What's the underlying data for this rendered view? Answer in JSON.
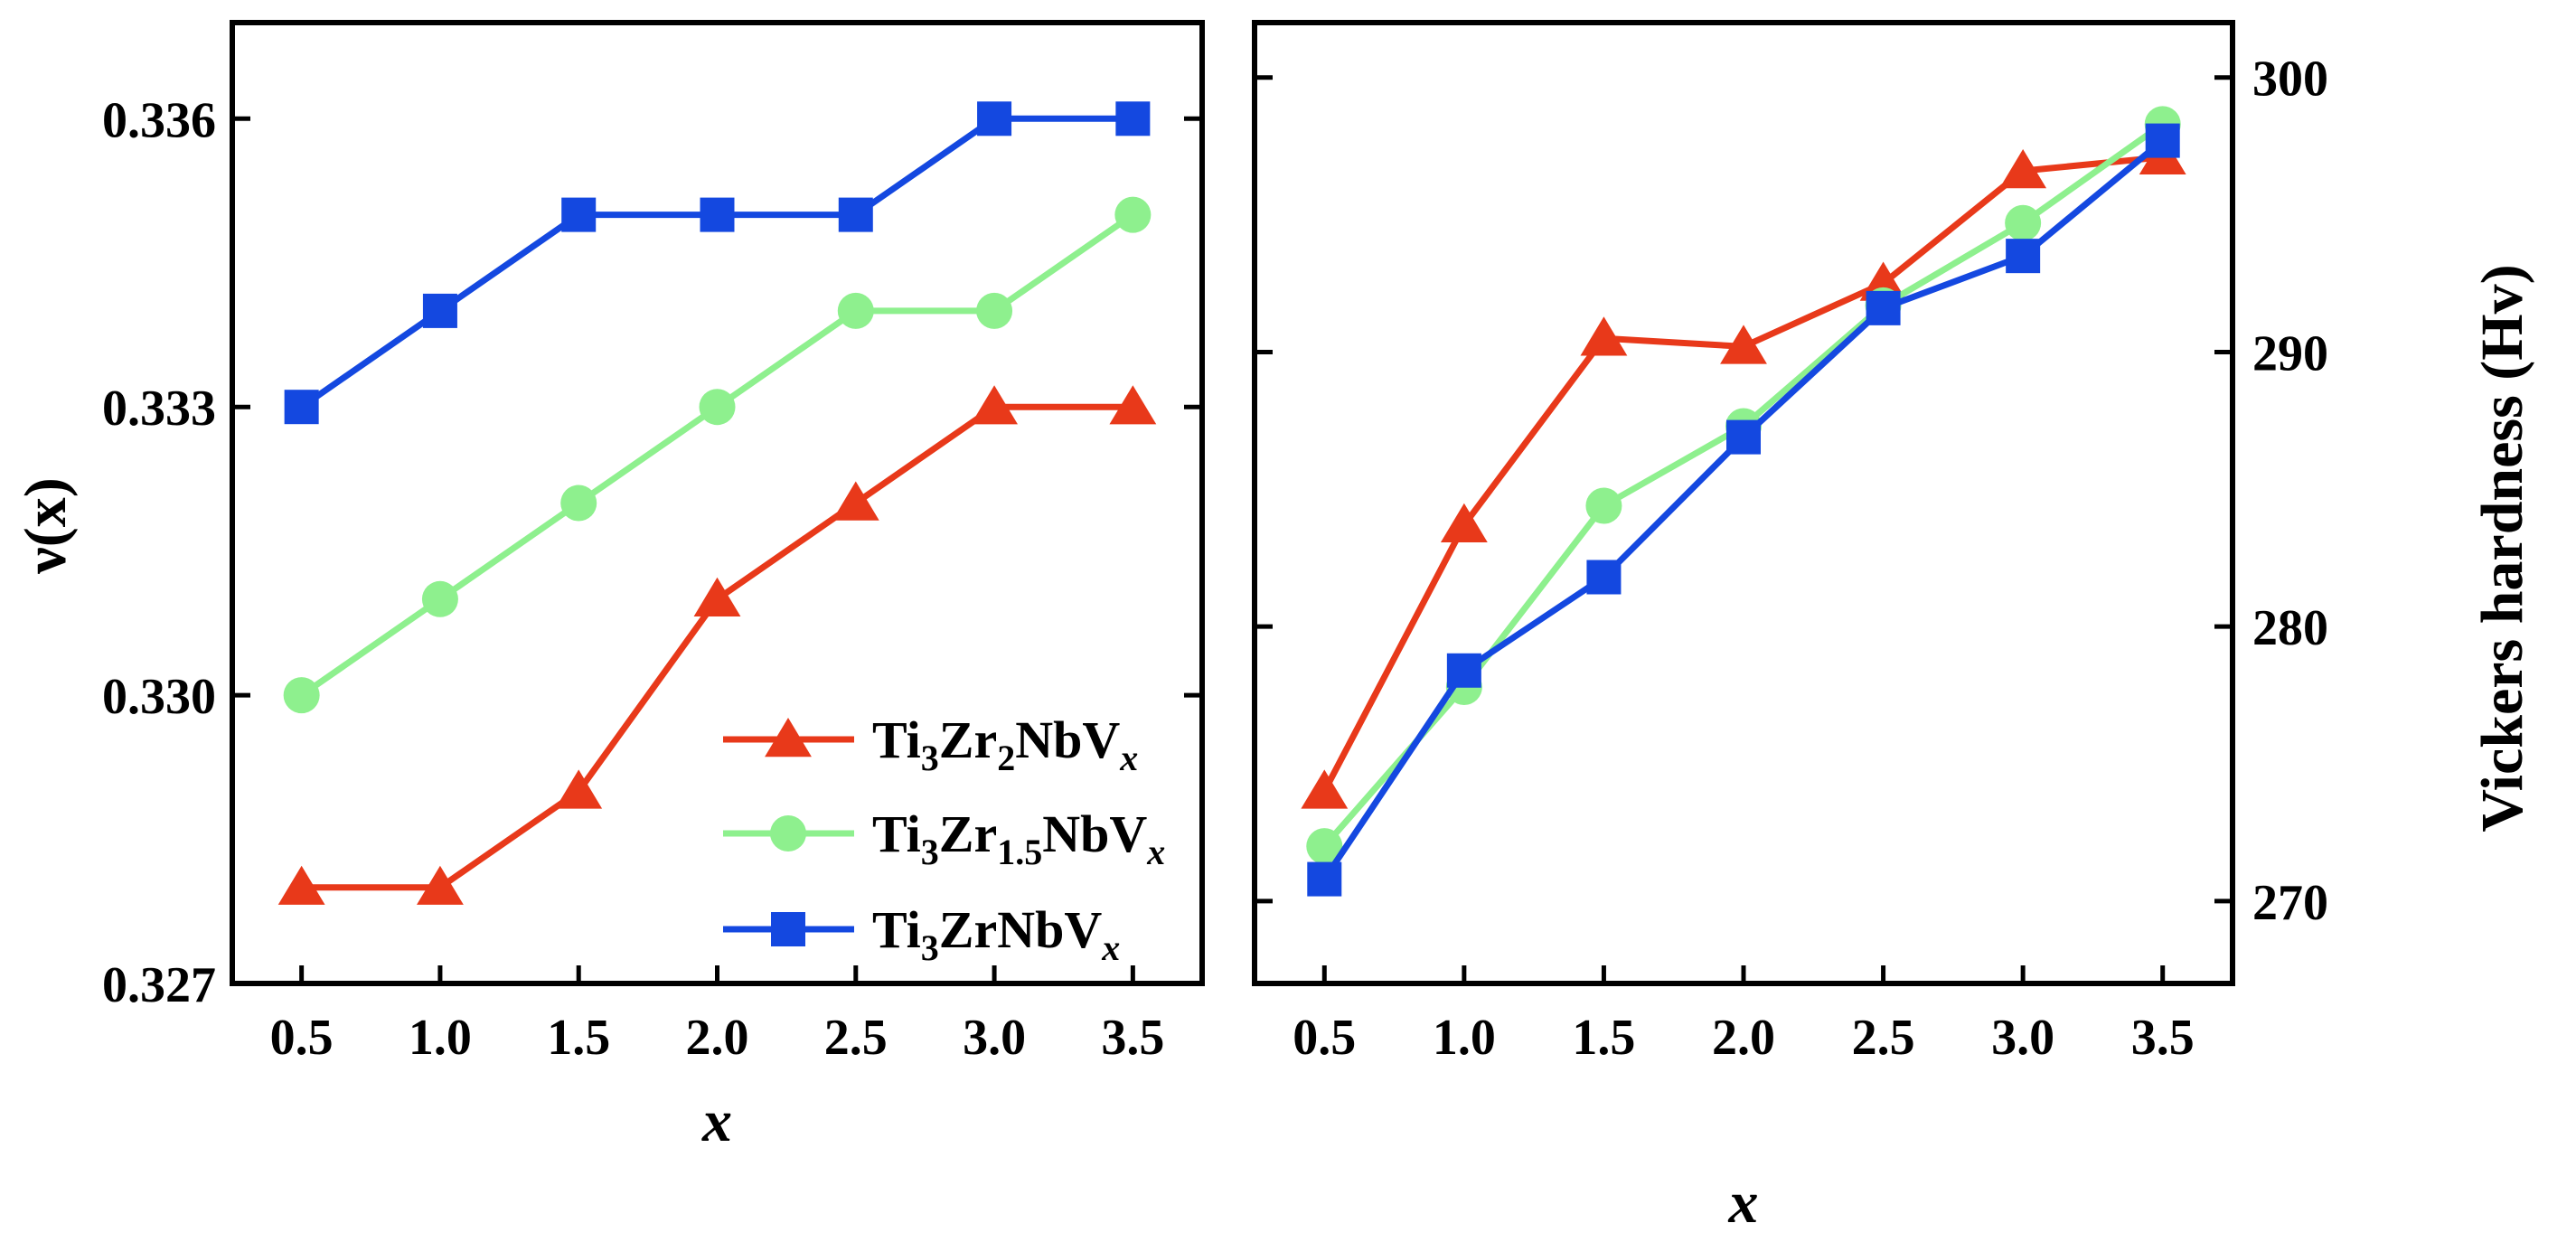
{
  "chart_data": [
    {
      "type": "line",
      "panel": "left",
      "x": [
        0.5,
        1.0,
        1.5,
        2.0,
        2.5,
        3.0,
        3.5
      ],
      "xticks": [
        "0.5",
        "1.0",
        "1.5",
        "2.0",
        "2.5",
        "3.0",
        "3.5"
      ],
      "xlim": [
        0.25,
        3.75
      ],
      "ylim": [
        0.327,
        0.337
      ],
      "yticks": [
        "0.327",
        "0.330",
        "0.333",
        "0.336"
      ],
      "ytick_values": [
        0.327,
        0.33,
        0.333,
        0.336
      ],
      "ylabel": "ν(x)",
      "xlabel": "x",
      "legend_position": "lower-right",
      "series": [
        {
          "name": "Ti3Zr2NbVx",
          "legend": {
            "base1": "Ti",
            "sub1": "3",
            "base2": "Zr",
            "sub2": "2",
            "base3": "NbV",
            "sub3": "x"
          },
          "color": "#e8391a",
          "marker": "triangle",
          "values": [
            0.328,
            0.328,
            0.329,
            0.331,
            0.332,
            0.333,
            0.333
          ]
        },
        {
          "name": "Ti3Zr1.5NbVx",
          "legend": {
            "base1": "Ti",
            "sub1": "3",
            "base2": "Zr",
            "sub2": "1.5",
            "base3": "NbV",
            "sub3": "x"
          },
          "color": "#8ef08e",
          "marker": "circle",
          "values": [
            0.33,
            0.331,
            0.332,
            0.333,
            0.334,
            0.334,
            0.335
          ]
        },
        {
          "name": "Ti3ZrNbVx",
          "legend": {
            "base1": "Ti",
            "sub1": "3",
            "base2": "ZrNbV",
            "sub2": "x"
          },
          "color": "#1448e0",
          "marker": "square",
          "values": [
            0.333,
            0.334,
            0.335,
            0.335,
            0.335,
            0.336,
            0.336
          ]
        }
      ]
    },
    {
      "type": "line",
      "panel": "right",
      "x": [
        0.5,
        1.0,
        1.5,
        2.0,
        2.5,
        3.0,
        3.5
      ],
      "xticks": [
        "0.5",
        "1.0",
        "1.5",
        "2.0",
        "2.5",
        "3.0",
        "3.5"
      ],
      "xlim": [
        0.25,
        3.75
      ],
      "ylim": [
        267,
        302
      ],
      "yticks": [
        "270",
        "280",
        "290",
        "300"
      ],
      "ytick_values": [
        270,
        280,
        290,
        300
      ],
      "ylabel": "Vickers hardness (Hv)",
      "xlabel": "x",
      "series": [
        {
          "name": "Ti3Zr2NbVx",
          "color": "#e8391a",
          "marker": "triangle",
          "values": [
            274.0,
            283.7,
            290.5,
            290.2,
            292.5,
            296.6,
            297.1
          ]
        },
        {
          "name": "Ti3Zr1.5NbVx",
          "color": "#8ef08e",
          "marker": "circle",
          "values": [
            272.0,
            277.8,
            284.4,
            287.3,
            291.7,
            294.7,
            298.3
          ]
        },
        {
          "name": "Ti3ZrNbVx",
          "color": "#1448e0",
          "marker": "square",
          "values": [
            270.8,
            278.4,
            281.8,
            286.9,
            291.6,
            293.5,
            297.7
          ]
        }
      ]
    }
  ]
}
